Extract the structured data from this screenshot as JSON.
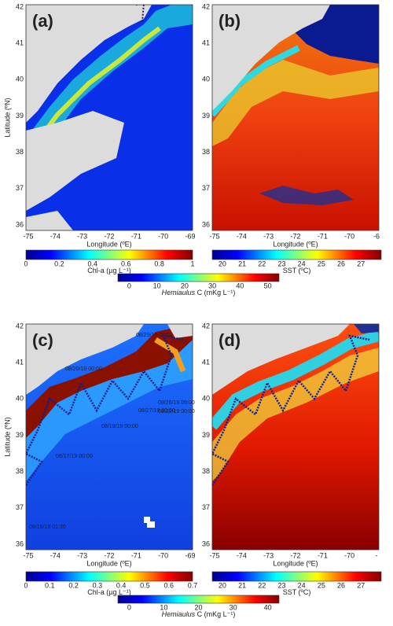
{
  "panels": [
    {
      "label": "(a)",
      "ylabel": "Latitude (ºN)",
      "xlabel": "Longitude (ºE)",
      "xticks": [
        -75,
        -74,
        -73,
        -72,
        -71,
        -70,
        -69
      ],
      "yticks": [
        42,
        41,
        40,
        39,
        38,
        37,
        36
      ]
    },
    {
      "label": "(b)",
      "xlabel": "Longitude (ºE)",
      "xticks": [
        -75,
        -74,
        -73,
        -72,
        -71,
        -70,
        -6
      ],
      "yticks": [
        42,
        41,
        40,
        39,
        38,
        37,
        36
      ]
    },
    {
      "label": "(c)",
      "ylabel": "Latitude (ºN)",
      "xlabel": "Longitude (ºE)",
      "xticks": [
        -75,
        -74,
        -73,
        -72,
        -71,
        -70,
        -69
      ],
      "yticks": [
        42,
        41,
        40,
        39,
        38,
        37,
        36
      ],
      "annotations": [
        "08/29/19 00:00",
        "08/20/19 00:00",
        "08/27/19 00:00",
        "08/26/19 09:00",
        "08/22/19 00:00",
        "08/19/19 00:00",
        "08/17/19 00:00",
        "08/16/19 01:30"
      ]
    },
    {
      "label": "(d)",
      "xlabel": "Longitude (ºE)",
      "xticks": [
        -75,
        -74,
        -73,
        -72,
        -71,
        -70,
        "-"
      ],
      "yticks": [
        42,
        41,
        40,
        39,
        38,
        37,
        36
      ]
    }
  ],
  "colorbars": [
    {
      "label": "Chl-a (µg L⁻¹)",
      "ticks": [
        0,
        0.2,
        0.4,
        0.6,
        0.8,
        1
      ]
    },
    {
      "label_italic": "Hemiaulus",
      "label": "C (mKg L⁻¹)",
      "ticks": [
        0,
        10,
        20,
        30,
        40,
        50
      ]
    },
    {
      "label": "SST (ºC)",
      "ticks": [
        20,
        21,
        22,
        23,
        24,
        25,
        26,
        27
      ]
    },
    {
      "label": "Chl-a (µg L⁻¹)",
      "ticks": [
        0,
        0.1,
        0.2,
        0.3,
        0.4,
        0.5,
        0.6,
        0.7
      ]
    },
    {
      "label_italic": "Hemiaulus",
      "label": "C (mKg L⁻¹)",
      "ticks": [
        0,
        10,
        20,
        30,
        40
      ]
    },
    {
      "label": "SST (ºC)",
      "ticks": [
        20,
        21,
        22,
        23,
        24,
        25,
        26,
        27
      ]
    }
  ]
}
